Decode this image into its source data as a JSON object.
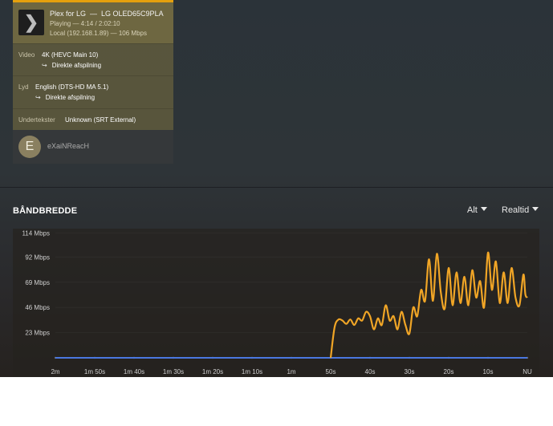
{
  "session": {
    "app": "Plex for LG",
    "separator": "—",
    "device": "LG OLED65C9PLA",
    "state": "Playing — 4:14 / 2:02:10",
    "network": "Local (192.168.1.89) — 106 Mbps",
    "video": {
      "label": "Video",
      "value": "4K (HEVC Main 10)",
      "mode": "Direkte afspilning"
    },
    "audio": {
      "label": "Lyd",
      "value": "English (DTS-HD MA 5.1)",
      "mode": "Direkte afspilning"
    },
    "subtitles": {
      "label": "Undertekster",
      "value": "Unknown (SRT External)"
    },
    "user": {
      "initial": "E",
      "name": "eXaiNReacH"
    },
    "thumb_icon": "chevron-right-icon"
  },
  "bandwidth": {
    "title": "BÅNDBREDDE",
    "filter": "Alt",
    "range": "Realtid"
  },
  "colors": {
    "accent": "#e5a00d",
    "lan_series": "#4a78e0",
    "wan_series": "#f0a526"
  },
  "chart_data": {
    "type": "line",
    "ylim": [
      0,
      115
    ],
    "yticks": [
      "114 Mbps",
      "92 Mbps",
      "69 Mbps",
      "46 Mbps",
      "23 Mbps"
    ],
    "ytick_values": [
      114,
      92,
      69,
      46,
      23
    ],
    "categories": [
      "2m",
      "1m 50s",
      "1m 40s",
      "1m 30s",
      "1m 20s",
      "1m 10s",
      "1m",
      "50s",
      "40s",
      "30s",
      "20s",
      "10s",
      "NU"
    ],
    "x_seconds_ago": [
      120,
      110,
      100,
      90,
      80,
      70,
      60,
      50,
      40,
      30,
      20,
      10,
      0
    ],
    "series": [
      {
        "color": "#4a78e0",
        "points": [
          [
            120,
            0
          ],
          [
            0,
            0
          ]
        ]
      },
      {
        "color": "#f0a526",
        "points": [
          [
            50,
            0
          ],
          [
            49,
            28
          ],
          [
            48,
            35
          ],
          [
            47,
            34
          ],
          [
            46,
            31
          ],
          [
            45,
            35
          ],
          [
            44,
            30
          ],
          [
            43,
            36
          ],
          [
            42,
            34
          ],
          [
            41,
            42
          ],
          [
            40,
            38
          ],
          [
            39,
            26
          ],
          [
            38,
            36
          ],
          [
            37,
            30
          ],
          [
            36,
            48
          ],
          [
            35,
            34
          ],
          [
            34,
            38
          ],
          [
            33,
            26
          ],
          [
            32,
            42
          ],
          [
            31,
            30
          ],
          [
            30,
            22
          ],
          [
            29,
            46
          ],
          [
            28,
            38
          ],
          [
            27,
            62
          ],
          [
            26,
            52
          ],
          [
            25,
            90
          ],
          [
            24,
            52
          ],
          [
            23,
            95
          ],
          [
            22,
            60
          ],
          [
            21,
            45
          ],
          [
            20,
            82
          ],
          [
            19,
            48
          ],
          [
            18,
            78
          ],
          [
            17,
            50
          ],
          [
            16,
            74
          ],
          [
            15,
            48
          ],
          [
            14,
            80
          ],
          [
            13,
            55
          ],
          [
            12,
            70
          ],
          [
            11,
            46
          ],
          [
            10,
            96
          ],
          [
            9,
            62
          ],
          [
            8,
            88
          ],
          [
            7,
            50
          ],
          [
            6,
            78
          ],
          [
            5,
            50
          ],
          [
            4,
            82
          ],
          [
            3,
            55
          ],
          [
            2,
            48
          ],
          [
            1,
            76
          ],
          [
            0.5,
            58
          ],
          [
            0,
            55
          ]
        ]
      }
    ]
  }
}
